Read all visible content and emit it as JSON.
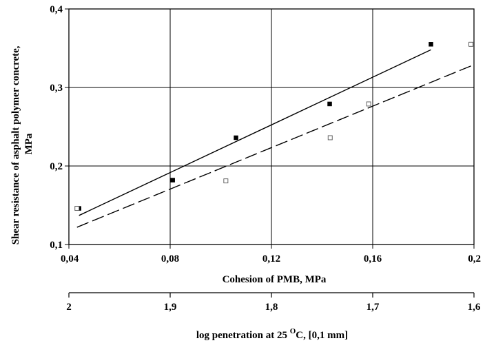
{
  "chart_data": {
    "type": "scatter",
    "xlabel": "Cohesion of PMB, MPa",
    "ylabel_lines": [
      "Shear resistance of asphalt polymer concrete,",
      "MPa"
    ],
    "x2label_parts": {
      "pre": "log penetration at 25 ",
      "sup": "O",
      "post": "C, [0,1 mm]"
    },
    "xlim": [
      0.04,
      0.2
    ],
    "ylim": [
      0.1,
      0.4
    ],
    "x_ticks": [
      "0,04",
      "0,08",
      "0,12",
      "0,16",
      "0,2"
    ],
    "x_tick_values": [
      0.04,
      0.08,
      0.12,
      0.16,
      0.2
    ],
    "y_ticks": [
      "0,1",
      "0,2",
      "0,3",
      "0,4"
    ],
    "y_tick_values": [
      0.1,
      0.2,
      0.3,
      0.4
    ],
    "x2lim": [
      2.0,
      1.6
    ],
    "x2_ticks": [
      "2",
      "1,9",
      "1,8",
      "1,7",
      "1,6"
    ],
    "x2_tick_values": [
      2.0,
      1.9,
      1.8,
      1.7,
      1.6
    ],
    "grid": true,
    "series": [
      {
        "axis": "x",
        "marker": "filled-square",
        "points": [
          [
            0.044,
            0.146
          ],
          [
            0.081,
            0.182
          ],
          [
            0.106,
            0.236
          ],
          [
            0.143,
            0.279
          ],
          [
            0.183,
            0.355
          ]
        ],
        "trend": {
          "style": "solid",
          "from": [
            0.044,
            0.137
          ],
          "to": [
            0.183,
            0.348
          ]
        }
      },
      {
        "axis": "x2",
        "marker": "open-square",
        "points": [
          [
            1.992,
            0.146
          ],
          [
            1.845,
            0.181
          ],
          [
            1.742,
            0.236
          ],
          [
            1.704,
            0.279
          ],
          [
            1.603,
            0.355
          ]
        ],
        "trend": {
          "style": "dashed",
          "from": [
            1.992,
            0.122
          ],
          "to": [
            1.6,
            0.329
          ]
        }
      }
    ],
    "colors": {
      "line": "#000000",
      "grid": "#000000",
      "background": "#ffffff"
    }
  }
}
